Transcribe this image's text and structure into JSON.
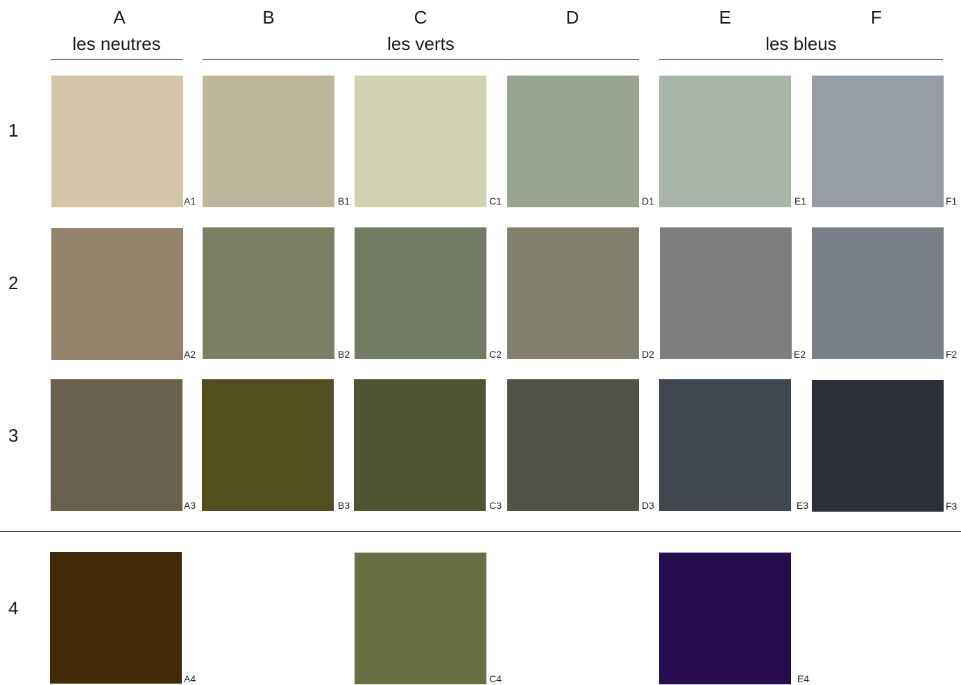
{
  "columns": [
    "A",
    "B",
    "C",
    "D",
    "E",
    "F"
  ],
  "groups": {
    "neutres": "les neutres",
    "verts": "les verts",
    "bleus": "les bleus"
  },
  "rows": [
    "1",
    "2",
    "3",
    "4"
  ],
  "swatches": {
    "A1": {
      "code": "A1",
      "color": "#D3C5A9"
    },
    "B1": {
      "code": "B1",
      "color": "#BBB69C"
    },
    "C1": {
      "code": "C1",
      "color": "#D2D1B1"
    },
    "D1": {
      "code": "D1",
      "color": "#98A490"
    },
    "E1": {
      "code": "E1",
      "color": "#AAB5AA"
    },
    "F1": {
      "code": "F1",
      "color": "#969DA4"
    },
    "A2": {
      "code": "A2",
      "color": "#93836D"
    },
    "B2": {
      "code": "B2",
      "color": "#7C7F63"
    },
    "C2": {
      "code": "C2",
      "color": "#727B63"
    },
    "D2": {
      "code": "D2",
      "color": "#827F6F"
    },
    "E2": {
      "code": "E2",
      "color": "#7D7E7B"
    },
    "F2": {
      "code": "F2",
      "color": "#787F86"
    },
    "A3": {
      "code": "A3",
      "color": "#6A604E"
    },
    "B3": {
      "code": "B3",
      "color": "#524F21"
    },
    "C3": {
      "code": "C3",
      "color": "#4F5432"
    },
    "D3": {
      "code": "D3",
      "color": "#505345"
    },
    "E3": {
      "code": "E3",
      "color": "#40474F"
    },
    "F3": {
      "code": "F3",
      "color": "#2D3038"
    },
    "A4": {
      "code": "A4",
      "color": "#412C07"
    },
    "C4": {
      "code": "C4",
      "color": "#6A6F44"
    },
    "E4": {
      "code": "E4",
      "color": "#260D4F"
    }
  }
}
